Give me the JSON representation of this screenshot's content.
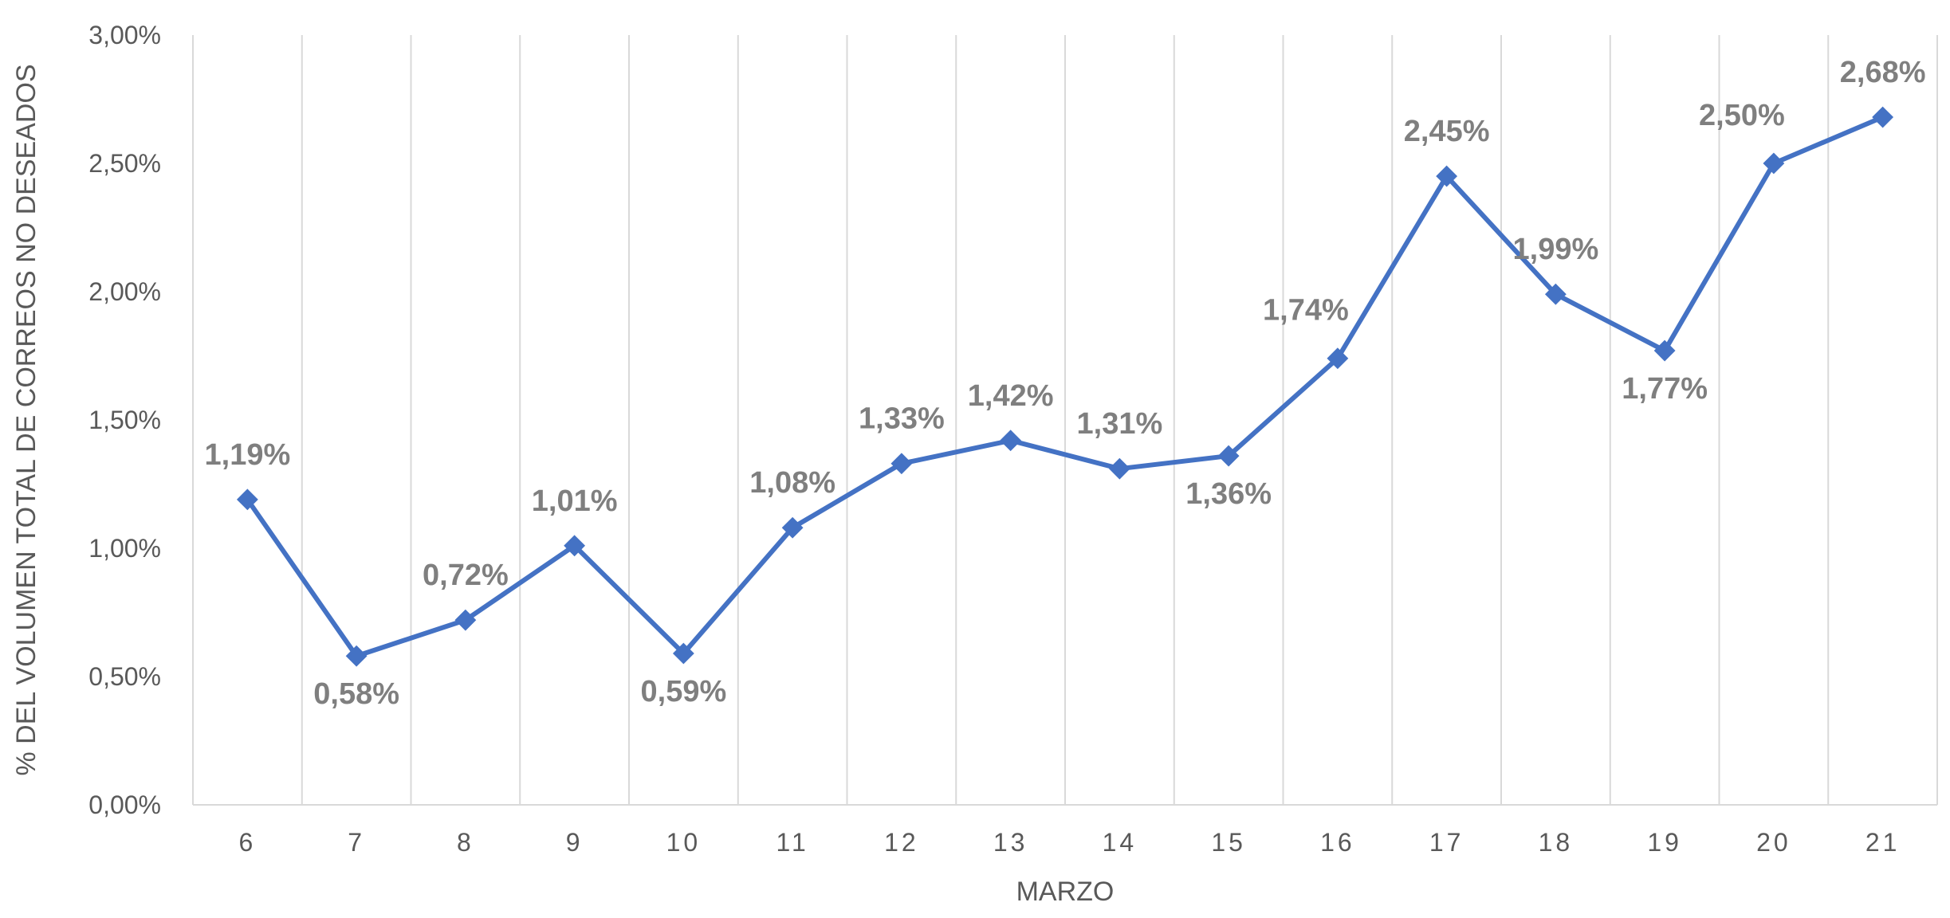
{
  "chart_data": {
    "type": "line",
    "title": "",
    "xlabel": "MARZO",
    "ylabel": "% DEL VOLUMEN TOTAL DE CORREOS NO DESEADOS",
    "categories": [
      "6",
      "7",
      "8",
      "9",
      "10",
      "11",
      "12",
      "13",
      "14",
      "15",
      "16",
      "17",
      "18",
      "19",
      "20",
      "21"
    ],
    "values": [
      1.19,
      0.58,
      0.72,
      1.01,
      0.59,
      1.08,
      1.33,
      1.42,
      1.31,
      1.36,
      1.74,
      2.45,
      1.99,
      1.77,
      2.5,
      2.68
    ],
    "data_labels": [
      "1,19%",
      "0,58%",
      "0,72%",
      "1,01%",
      "0,59%",
      "1,08%",
      "1,33%",
      "1,42%",
      "1,31%",
      "1,36%",
      "1,74%",
      "2,45%",
      "1,99%",
      "1,77%",
      "2,50%",
      "2,68%"
    ],
    "label_placement": [
      "above",
      "below",
      "above",
      "above",
      "below",
      "above",
      "above",
      "above",
      "above",
      "below",
      "above-left",
      "above",
      "above",
      "below",
      "above-left",
      "above"
    ],
    "ylim": [
      0,
      3
    ],
    "y_ticks": [
      0,
      0.5,
      1,
      1.5,
      2,
      2.5,
      3
    ],
    "y_tick_labels": [
      "0,00%",
      "0,50%",
      "1,00%",
      "1,50%",
      "2,00%",
      "2,50%",
      "3,00%"
    ],
    "grid": "vertical",
    "legend": "none",
    "marker": "diamond",
    "colors": {
      "line": "#4472C4",
      "gridline": "#d9d9d9",
      "axis_text": "#595959",
      "label_text": "#7f7f7f"
    }
  }
}
